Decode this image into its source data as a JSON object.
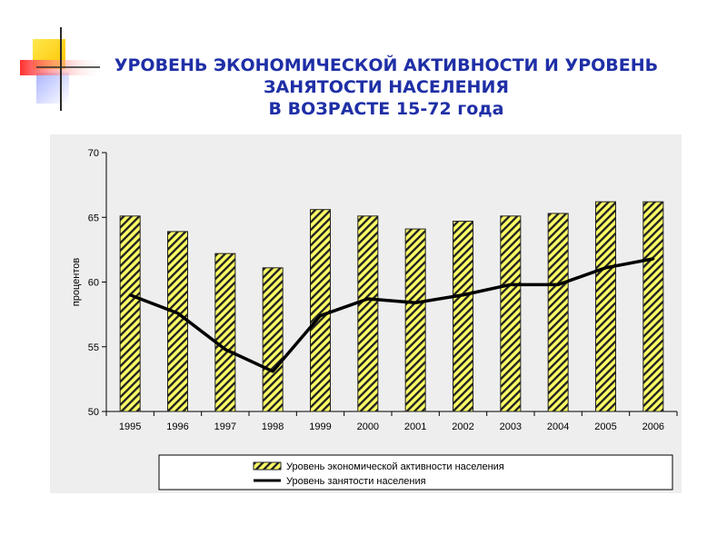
{
  "slide": {
    "title_lines": [
      "УРОВЕНЬ ЭКОНОМИЧЕСКОЙ АКТИВНОСТИ И УРОВЕНЬ",
      "ЗАНЯТОСТИ НАСЕЛЕНИЯ",
      "В ВОЗРАСТЕ 15-72 года"
    ]
  },
  "colors": {
    "title": "#1f2fa6",
    "bar_fill": "#ffff66",
    "bar_hatch": "#222222",
    "line": "#000000",
    "plot_background": "#eeeeee",
    "decor_yellow": "#ffd700",
    "decor_red": "#ff4d4d",
    "decor_blue": "#3b4fd8"
  },
  "chart_data": {
    "type": "bar+line",
    "categories": [
      "1995",
      "1996",
      "1997",
      "1998",
      "1999",
      "2000",
      "2001",
      "2002",
      "2003",
      "2004",
      "2005",
      "2006"
    ],
    "series": [
      {
        "name": "Уровень экономической активности населения",
        "type": "bar",
        "values": [
          65.1,
          63.9,
          62.2,
          61.1,
          65.6,
          65.1,
          64.1,
          64.7,
          65.1,
          65.3,
          66.2,
          66.2
        ]
      },
      {
        "name": "Уровень занятости населения",
        "type": "line",
        "values": [
          59.0,
          57.6,
          54.8,
          53.1,
          57.4,
          58.7,
          58.4,
          59.0,
          59.8,
          59.8,
          61.1,
          61.8
        ]
      }
    ],
    "ylabel": "процентов",
    "xlabel": "",
    "ylim": [
      50,
      70
    ],
    "yticks": [
      50,
      55,
      60,
      65,
      70
    ],
    "grid": false,
    "legend_position": "bottom"
  }
}
